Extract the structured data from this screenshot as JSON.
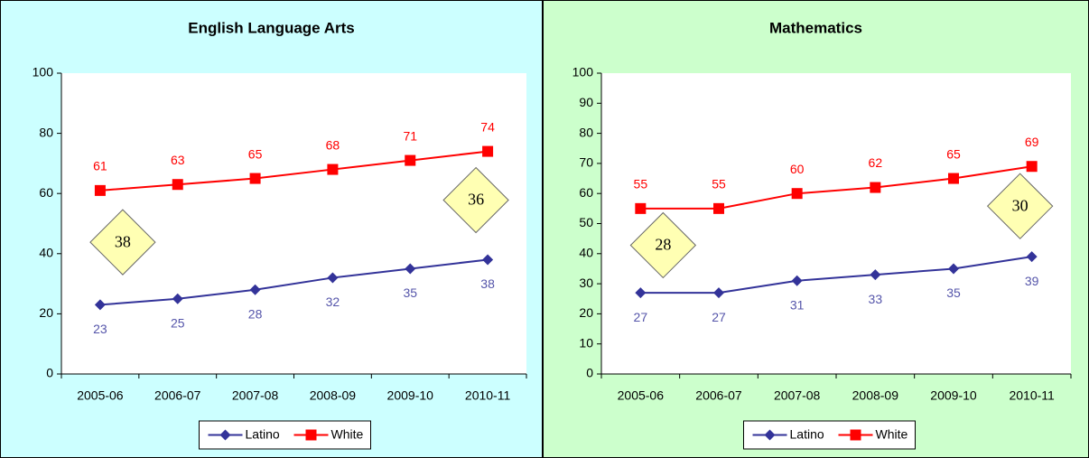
{
  "chart_data": [
    {
      "type": "line",
      "title": "English Language Arts",
      "categories": [
        "2005-06",
        "2006-07",
        "2007-08",
        "2008-09",
        "2009-10",
        "2010-11"
      ],
      "series": [
        {
          "name": "Latino",
          "color": "#333399",
          "label_color": "#5555aa",
          "marker": "diamond",
          "values": [
            23,
            25,
            28,
            32,
            35,
            38
          ]
        },
        {
          "name": "White",
          "color": "#ff0000",
          "label_color": "#ff0000",
          "marker": "square",
          "values": [
            61,
            63,
            65,
            68,
            71,
            74
          ]
        }
      ],
      "annotations": [
        "38",
        "36"
      ],
      "ylim": [
        0,
        100
      ],
      "yticks": [
        0,
        20,
        40,
        60,
        80,
        100
      ],
      "grid": false,
      "legend": "bottom",
      "background": "#ccffff"
    },
    {
      "type": "line",
      "title": "Mathematics",
      "categories": [
        "2005-06",
        "2006-07",
        "2007-08",
        "2008-09",
        "2009-10",
        "2010-11"
      ],
      "series": [
        {
          "name": "Latino",
          "color": "#333399",
          "label_color": "#5555aa",
          "marker": "diamond",
          "values": [
            27,
            27,
            31,
            33,
            35,
            39
          ]
        },
        {
          "name": "White",
          "color": "#ff0000",
          "label_color": "#ff0000",
          "marker": "square",
          "values": [
            55,
            55,
            60,
            62,
            65,
            69
          ]
        }
      ],
      "annotations": [
        "28",
        "30"
      ],
      "ylim": [
        0,
        100
      ],
      "yticks": [
        0,
        10,
        20,
        30,
        40,
        50,
        60,
        70,
        80,
        90,
        100
      ],
      "grid": false,
      "legend": "bottom",
      "background": "#ccffcc"
    }
  ]
}
